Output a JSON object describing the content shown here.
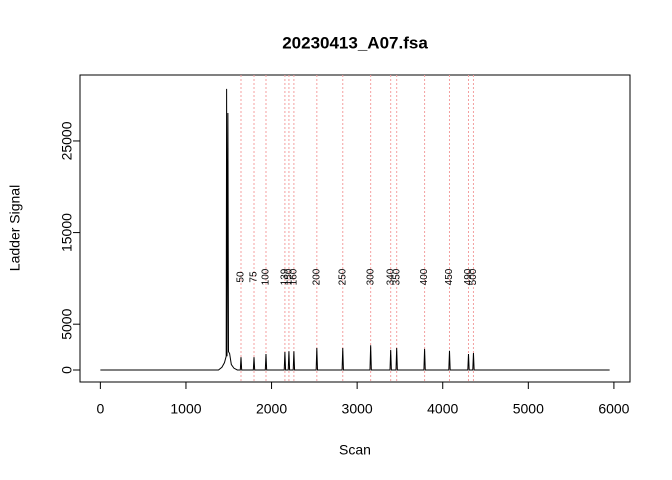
{
  "chart_data": {
    "type": "line",
    "title": "20230413_A07.fsa",
    "x_label": "Scan",
    "y_label": "Ladder Signal",
    "xlim": [
      -238,
      6188
    ],
    "ylim": [
      -1310,
      32200
    ],
    "xticks": [
      0,
      1000,
      2000,
      3000,
      4000,
      5000,
      6000
    ],
    "yticks": [
      0,
      5000,
      15000,
      25000
    ],
    "series": [
      {
        "name": "Signal",
        "color": "#000000",
        "x": [
          0,
          1380,
          1420,
          1450,
          1470,
          1475,
          1480,
          1490,
          1497,
          1510,
          1530,
          1560,
          1600,
          1635,
          1643,
          1651,
          1787,
          1795,
          1803,
          1927,
          1935,
          1943,
          2148,
          2156,
          2164,
          2195,
          2203,
          2211,
          2253,
          2261,
          2269,
          2521,
          2529,
          2537,
          2824,
          2832,
          2840,
          3150,
          3158,
          3166,
          3384,
          3392,
          3400,
          3454,
          3462,
          3470,
          3780,
          3788,
          3796,
          4071,
          4079,
          4087,
          4293,
          4301,
          4309,
          4351,
          4359,
          4367,
          5950
        ],
        "values": [
          0,
          0,
          300,
          800,
          1500,
          30680,
          1500,
          28050,
          2000,
          1800,
          600,
          200,
          0,
          0,
          1400,
          0,
          0,
          1400,
          0,
          0,
          1750,
          0,
          0,
          1960,
          0,
          0,
          2050,
          0,
          0,
          2050,
          0,
          0,
          2400,
          0,
          0,
          2400,
          0,
          0,
          2700,
          0,
          0,
          2200,
          0,
          0,
          2400,
          0,
          0,
          2300,
          0,
          0,
          2100,
          0,
          0,
          1750,
          0,
          0,
          1850,
          0,
          0
        ]
      }
    ],
    "ladder": {
      "color": "#f4a0a0",
      "sizes": [
        50,
        75,
        100,
        139,
        150,
        160,
        200,
        250,
        300,
        340,
        350,
        400,
        450,
        490,
        500
      ],
      "scans": [
        1643,
        1795,
        1935,
        2156,
        2203,
        2261,
        2529,
        2832,
        3158,
        3392,
        3462,
        3788,
        4079,
        4301,
        4359
      ]
    }
  }
}
